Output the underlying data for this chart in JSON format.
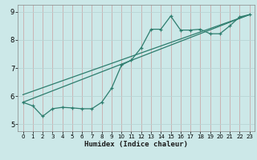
{
  "title": "",
  "xlabel": "Humidex (Indice chaleur)",
  "bg_color": "#cce8e8",
  "grid_color_h": "#b8d4d4",
  "grid_color_v": "#c8a0a0",
  "line_color": "#2e7d6e",
  "xlim": [
    -0.5,
    23.5
  ],
  "ylim": [
    4.75,
    9.25
  ],
  "xticks": [
    0,
    1,
    2,
    3,
    4,
    5,
    6,
    7,
    8,
    9,
    10,
    11,
    12,
    13,
    14,
    15,
    16,
    17,
    18,
    19,
    20,
    21,
    22,
    23
  ],
  "yticks": [
    5,
    6,
    7,
    8,
    9
  ],
  "main_x": [
    0,
    1,
    2,
    3,
    4,
    5,
    6,
    7,
    8,
    9,
    10,
    11,
    12,
    13,
    14,
    15,
    16,
    17,
    18,
    19,
    20,
    21,
    22,
    23
  ],
  "main_y": [
    5.78,
    5.65,
    5.28,
    5.55,
    5.6,
    5.58,
    5.55,
    5.55,
    5.78,
    6.28,
    7.1,
    7.28,
    7.72,
    8.38,
    8.38,
    8.85,
    8.35,
    8.35,
    8.38,
    8.22,
    8.22,
    8.5,
    8.82,
    8.9
  ],
  "line1_x": [
    0,
    23
  ],
  "line1_y": [
    5.78,
    8.9
  ],
  "line2_x": [
    0,
    23
  ],
  "line2_y": [
    6.05,
    8.9
  ]
}
